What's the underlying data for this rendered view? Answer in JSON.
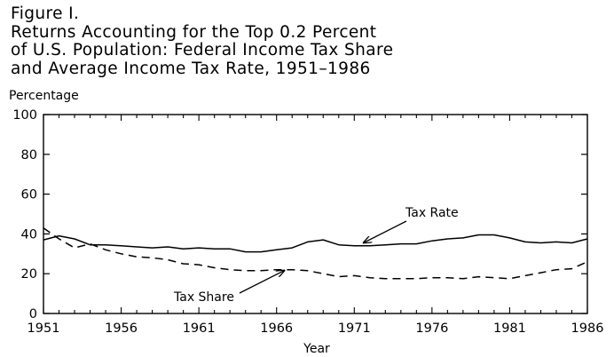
{
  "figure": {
    "label": "Figure I.",
    "title_lines": [
      "Returns Accounting for the Top 0.2 Percent",
      "of U.S. Population: Federal Income Tax Share",
      "and Average Income Tax Rate, 1951–1986"
    ]
  },
  "chart_data": {
    "type": "line",
    "xlabel": "Year",
    "ylabel": "Percentage",
    "xlim": [
      1951,
      1986
    ],
    "ylim": [
      0,
      100
    ],
    "xticks": [
      1951,
      1956,
      1961,
      1966,
      1971,
      1976,
      1981,
      1986
    ],
    "yticks": [
      0,
      20,
      40,
      60,
      80,
      100
    ],
    "grid": false,
    "x": [
      1951,
      1952,
      1953,
      1954,
      1955,
      1956,
      1957,
      1958,
      1959,
      1960,
      1961,
      1962,
      1963,
      1964,
      1965,
      1966,
      1967,
      1968,
      1969,
      1970,
      1971,
      1972,
      1973,
      1974,
      1975,
      1976,
      1977,
      1978,
      1979,
      1980,
      1981,
      1982,
      1983,
      1984,
      1985,
      1986
    ],
    "series": [
      {
        "name": "Tax Rate",
        "style": "solid",
        "values": [
          37,
          39,
          37.5,
          34.5,
          34.5,
          34,
          33.5,
          33,
          33.5,
          32.5,
          33,
          32.5,
          32.5,
          31,
          31,
          32,
          33,
          36,
          37,
          34.5,
          34,
          34,
          34.5,
          35,
          35,
          36.5,
          37.5,
          38,
          39.5,
          39.5,
          38,
          36,
          35.5,
          36,
          35.5,
          37.5
        ]
      },
      {
        "name": "Tax Share",
        "style": "dashed",
        "values": [
          43,
          37.5,
          33,
          35,
          32,
          30,
          28.5,
          28,
          27,
          25,
          24.5,
          23,
          22,
          21.5,
          21.5,
          22,
          22,
          21.5,
          20,
          18.5,
          19,
          18,
          17.5,
          17.5,
          17.5,
          18,
          18,
          17.5,
          18.5,
          18,
          17.5,
          19,
          20.5,
          22,
          22.5,
          26
        ]
      }
    ],
    "annotations": [
      {
        "text": "Tax Rate",
        "points_to": {
          "x": 1971.6,
          "y": 34.2
        }
      },
      {
        "text": "Tax Share",
        "points_to": {
          "x": 1966.5,
          "y": 22.5
        }
      }
    ]
  }
}
